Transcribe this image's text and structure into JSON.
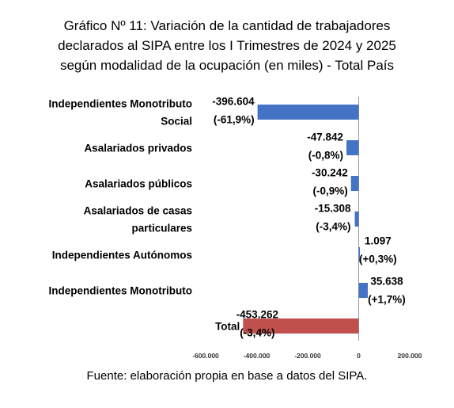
{
  "title": {
    "line1": "Gráfico Nº 11: Variación de la cantidad de trabajadores",
    "line2": "declarados al SIPA entre los I Trimestres de 2024 y 2025",
    "line3": "según modalidad de la ocupación (en miles) - Total País"
  },
  "source": "Fuente: elaboración propia en base a datos del SIPA.",
  "chart_data": {
    "type": "bar",
    "orientation": "horizontal",
    "categories": [
      [
        "Independientes Monotributo",
        "Social"
      ],
      [
        "Asalariados privados"
      ],
      [
        "Asalariados públicos"
      ],
      [
        "Asalariados de casas",
        "particulares"
      ],
      [
        "Independientes Autónomos"
      ],
      [
        "Independientes Monotributo"
      ],
      [
        "Total"
      ]
    ],
    "values": [
      -396604,
      -47842,
      -30242,
      -15308,
      1097,
      35638,
      -453262
    ],
    "value_labels": [
      "-396.604",
      "-47.842",
      "-30.242",
      "-15.308",
      "1.097",
      "35.638",
      "-453.262"
    ],
    "pct_labels": [
      "(-61,9%)",
      "(-0,8%)",
      "(-0,9%)",
      "(-3,4%)",
      "(+0,3%)",
      "(+1,7%)",
      "(-3,4%)"
    ],
    "colors": [
      "#4472C4",
      "#4472C4",
      "#4472C4",
      "#4472C4",
      "#4472C4",
      "#4472C4",
      "#C0504D"
    ],
    "xlim": [
      -600000,
      200000
    ],
    "xticks": [
      -600000,
      -400000,
      -200000,
      0,
      200000
    ],
    "xtick_labels": [
      "-600.000",
      "-400.000",
      "-200.000",
      "0",
      "200.000"
    ],
    "grid": false,
    "legend": "none"
  }
}
